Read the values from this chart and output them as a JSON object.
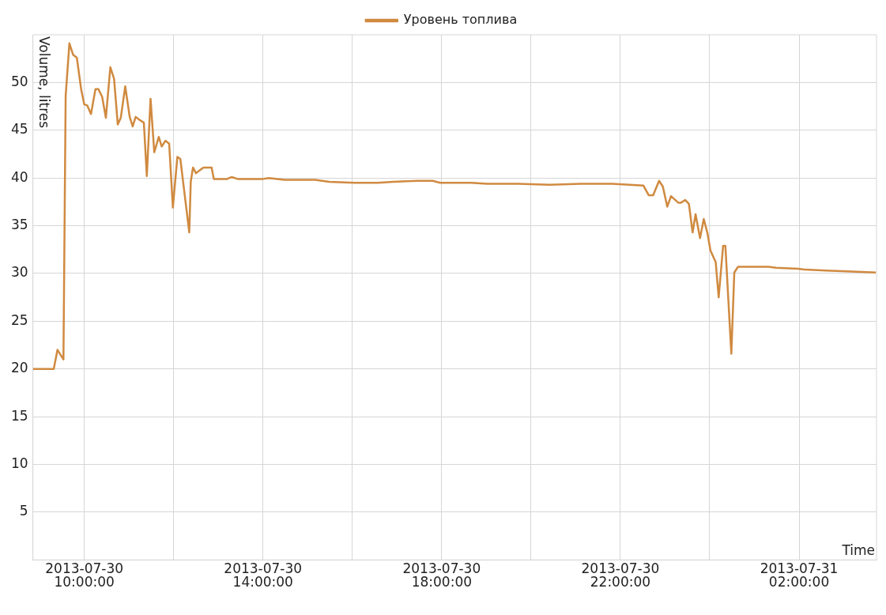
{
  "chart_data": {
    "type": "line",
    "xlabel": "Time",
    "ylabel": "Volume, litres",
    "legend": "top",
    "grid": true,
    "marker": "none",
    "line_style": "solid",
    "xlim": [
      "2013-07-30T08:51",
      "2013-07-31T03:44"
    ],
    "xticks": [
      {
        "value": "2013-07-30T10:00",
        "label": "2013-07-30 10:00:00"
      },
      {
        "value": "2013-07-30T12:00",
        "label": null
      },
      {
        "value": "2013-07-30T14:00",
        "label": "2013-07-30 14:00:00"
      },
      {
        "value": "2013-07-30T16:00",
        "label": null
      },
      {
        "value": "2013-07-30T18:00",
        "label": "2013-07-30 18:00:00"
      },
      {
        "value": "2013-07-30T20:00",
        "label": null
      },
      {
        "value": "2013-07-30T22:00",
        "label": "2013-07-30 22:00:00"
      },
      {
        "value": "2013-07-31T00:00",
        "label": null
      },
      {
        "value": "2013-07-31T02:00",
        "label": "2013-07-31 02:00:00"
      }
    ],
    "ylim": [
      0,
      55
    ],
    "yticks": [
      5,
      10,
      15,
      20,
      25,
      30,
      35,
      40,
      45,
      50
    ],
    "x": [
      "2013-07-30T08:51",
      "2013-07-30T09:19",
      "2013-07-30T09:24",
      "2013-07-30T09:32",
      "2013-07-30T09:35",
      "2013-07-30T09:40",
      "2013-07-30T09:45",
      "2013-07-30T09:50",
      "2013-07-30T09:56",
      "2013-07-30T10:00",
      "2013-07-30T10:04",
      "2013-07-30T10:09",
      "2013-07-30T10:15",
      "2013-07-30T10:19",
      "2013-07-30T10:24",
      "2013-07-30T10:29",
      "2013-07-30T10:35",
      "2013-07-30T10:40",
      "2013-07-30T10:45",
      "2013-07-30T10:49",
      "2013-07-30T10:55",
      "2013-07-30T11:01",
      "2013-07-30T11:05",
      "2013-07-30T11:09",
      "2013-07-30T11:14",
      "2013-07-30T11:20",
      "2013-07-30T11:24",
      "2013-07-30T11:29",
      "2013-07-30T11:34",
      "2013-07-30T11:40",
      "2013-07-30T11:44",
      "2013-07-30T11:49",
      "2013-07-30T11:54",
      "2013-07-30T11:59",
      "2013-07-30T12:05",
      "2013-07-30T12:09",
      "2013-07-30T12:21",
      "2013-07-30T12:23",
      "2013-07-30T12:26",
      "2013-07-30T12:30",
      "2013-07-30T12:40",
      "2013-07-30T12:51",
      "2013-07-30T12:54",
      "2013-07-30T13:12",
      "2013-07-30T13:18",
      "2013-07-30T13:26",
      "2013-07-30T14:00",
      "2013-07-30T14:08",
      "2013-07-30T14:29",
      "2013-07-30T15:10",
      "2013-07-30T15:29",
      "2013-07-30T16:03",
      "2013-07-30T16:34",
      "2013-07-30T16:55",
      "2013-07-30T17:27",
      "2013-07-30T17:48",
      "2013-07-30T17:58",
      "2013-07-30T18:40",
      "2013-07-30T19:01",
      "2013-07-30T19:43",
      "2013-07-30T20:25",
      "2013-07-30T21:07",
      "2013-07-30T21:49",
      "2013-07-30T22:31",
      "2013-07-30T22:38",
      "2013-07-30T22:44",
      "2013-07-30T22:52",
      "2013-07-30T22:57",
      "2013-07-30T23:03",
      "2013-07-30T23:08",
      "2013-07-30T23:18",
      "2013-07-30T23:21",
      "2013-07-30T23:27",
      "2013-07-30T23:32",
      "2013-07-30T23:37",
      "2013-07-30T23:41",
      "2013-07-30T23:47",
      "2013-07-30T23:52",
      "2013-07-30T23:57",
      "2013-07-31T00:01",
      "2013-07-31T00:08",
      "2013-07-31T00:12",
      "2013-07-31T00:18",
      "2013-07-31T00:21",
      "2013-07-31T00:29",
      "2013-07-31T00:33",
      "2013-07-31T00:38",
      "2013-07-31T01:19",
      "2013-07-31T01:29",
      "2013-07-31T01:59",
      "2013-07-31T02:08",
      "2013-07-31T02:36",
      "2013-07-31T03:11",
      "2013-07-31T03:43"
    ],
    "series": [
      {
        "name": "Уровень топлива",
        "color": "#d08a40",
        "values": [
          20,
          20,
          22,
          21,
          48.6,
          54.1,
          52.9,
          52.6,
          49.2,
          47.7,
          47.6,
          46.7,
          49.3,
          49.3,
          48.5,
          46.3,
          51.6,
          50.4,
          45.6,
          46.3,
          49.6,
          46.4,
          45.4,
          46.4,
          46.1,
          45.8,
          40.2,
          48.3,
          42.7,
          44.3,
          43.3,
          43.9,
          43.6,
          36.9,
          42.2,
          42.0,
          34.3,
          39.6,
          41.1,
          40.5,
          41.1,
          41.1,
          39.9,
          39.9,
          40.1,
          39.9,
          39.9,
          40.0,
          39.8,
          39.8,
          39.6,
          39.5,
          39.5,
          39.6,
          39.7,
          39.7,
          39.5,
          39.5,
          39.4,
          39.4,
          39.3,
          39.4,
          39.4,
          39.2,
          38.2,
          38.2,
          39.7,
          39.1,
          37.0,
          38.1,
          37.4,
          37.4,
          37.7,
          37.3,
          34.3,
          36.2,
          33.7,
          35.7,
          34.2,
          32.4,
          31.2,
          27.5,
          32.9,
          32.9,
          21.6,
          30.1,
          30.7,
          30.7,
          30.6,
          30.5,
          30.4,
          30.3,
          30.2,
          30.1
        ]
      }
    ]
  }
}
